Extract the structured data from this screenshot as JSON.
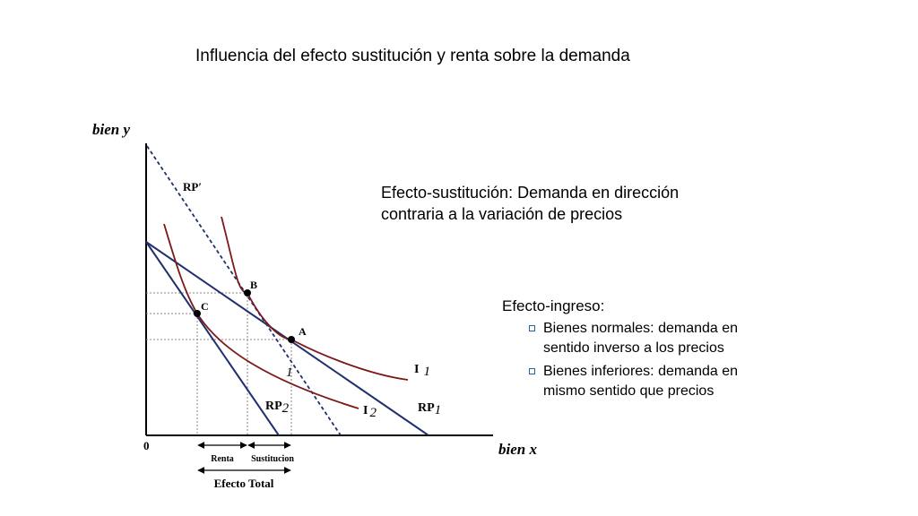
{
  "title": "Influencia del efecto sustitución y renta sobre la demanda",
  "substitution_note": {
    "line1": "Efecto-sustitución: Demanda en dirección",
    "line2": "contraria a la variación de precios"
  },
  "income_note": {
    "heading": "Efecto-ingreso:",
    "bullets": [
      {
        "line1": "Bienes normales: demanda en",
        "line2": "sentido inverso a los precios"
      },
      {
        "line1": "Bienes inferiores: demanda en",
        "line2": "mismo sentido que precios"
      }
    ]
  },
  "diagram": {
    "y_axis_label": "bien y",
    "x_axis_label": "bien x",
    "origin_label": "0",
    "points": {
      "a": "A",
      "b": "B",
      "c": "C"
    },
    "budget_lines": {
      "rp_prime": "RP′",
      "rp1_main": "RP",
      "rp1_sub": "1",
      "rp2_main": "RP",
      "rp2_sub": "2"
    },
    "indifference_curves": {
      "i1_main": "I",
      "i1_sub": "1",
      "i2_main": "I",
      "i2_sub": "2",
      "stray_one": "1"
    },
    "effects": {
      "renta": "Renta",
      "sustitucion": "Sustitucion",
      "total": "Efecto Total"
    },
    "colors": {
      "budget": "#22306e",
      "indifference": "#7a1a1a",
      "guides": "#888888"
    }
  }
}
